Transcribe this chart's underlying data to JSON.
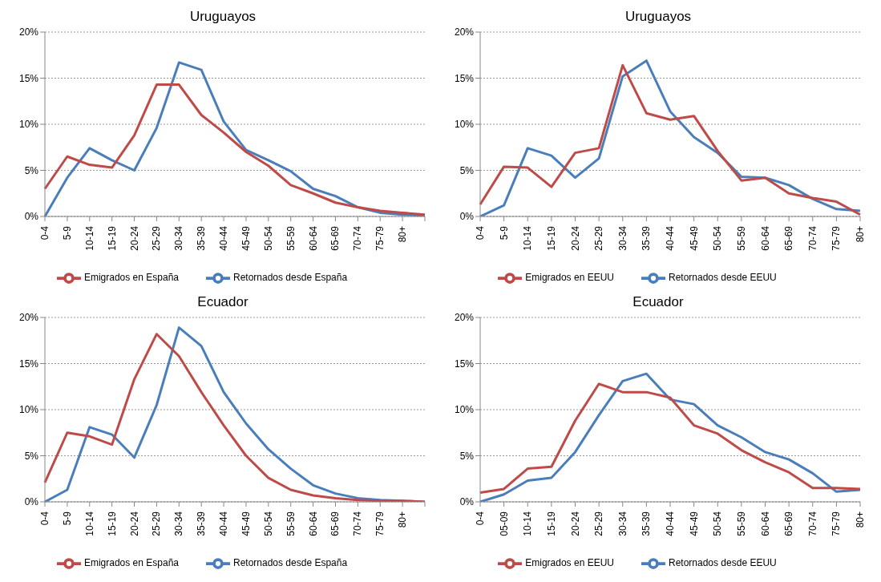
{
  "chart_data": [
    {
      "type": "line",
      "title": "Uruguayos",
      "categories": [
        "0-4",
        "5-9",
        "10-14",
        "15-19",
        "20-24",
        "25-29",
        "30-34",
        "35-39",
        "40-44",
        "45-49",
        "50-54",
        "55-59",
        "60-64",
        "65-69",
        "70-74",
        "75-79",
        "80+",
        null
      ],
      "series": [
        {
          "name": "Retornados desde España",
          "color": "#4a7ebb",
          "values": [
            0,
            4.2,
            7.4,
            6.1,
            5.0,
            9.6,
            16.7,
            15.9,
            10.3,
            7.2,
            6.1,
            4.9,
            3.0,
            2.2,
            1.0,
            0.4,
            0.2,
            0.1
          ]
        },
        {
          "name": "Emigrados en España",
          "color": "#be4b48",
          "values": [
            3.0,
            6.5,
            5.6,
            5.3,
            8.8,
            14.3,
            14.3,
            11.0,
            9.1,
            7.0,
            5.5,
            3.4,
            2.5,
            1.5,
            1.0,
            0.6,
            0.4,
            0.2
          ]
        }
      ],
      "ylim": [
        0,
        20
      ],
      "yticks": [
        {
          "value": 0,
          "label": "0%"
        },
        {
          "value": 5,
          "label": "5%"
        },
        {
          "value": 10,
          "label": "10%"
        },
        {
          "value": 15,
          "label": "15%"
        },
        {
          "value": 20,
          "label": "20%"
        }
      ],
      "grid": "y",
      "legend": "bottom"
    },
    {
      "type": "line",
      "title": "Uruguayos",
      "categories": [
        "0-4",
        "5-9",
        "10-14",
        "15-19",
        "20-24",
        "25-29",
        "30-34",
        "35-39",
        "40-44",
        "45-49",
        "50-54",
        "55-59",
        "60-64",
        "65-69",
        "70-74",
        "75-79",
        "80+"
      ],
      "series": [
        {
          "name": "Retornados desde EEUU",
          "color": "#4a7ebb",
          "values": [
            0,
            1.2,
            7.4,
            6.6,
            4.2,
            6.3,
            15.2,
            16.9,
            11.4,
            8.6,
            6.9,
            4.3,
            4.2,
            3.4,
            1.9,
            0.8,
            0.6
          ]
        },
        {
          "name": "Emigrados en EEUU",
          "color": "#be4b48",
          "values": [
            1.3,
            5.4,
            5.3,
            3.2,
            6.9,
            7.4,
            16.4,
            11.2,
            10.5,
            10.9,
            7.1,
            3.9,
            4.2,
            2.5,
            2.0,
            1.6,
            0.2
          ]
        }
      ],
      "ylim": [
        0,
        20
      ],
      "yticks": [
        {
          "value": 0,
          "label": "0%"
        },
        {
          "value": 5,
          "label": "5%"
        },
        {
          "value": 10,
          "label": "10%"
        },
        {
          "value": 15,
          "label": "15%"
        },
        {
          "value": 20,
          "label": "20%"
        }
      ],
      "grid": "y",
      "legend": "bottom"
    },
    {
      "type": "line",
      "title": "Ecuador",
      "categories": [
        "0-4",
        "5-9",
        "10-14",
        "15-19",
        "20-24",
        "25-29",
        "30-34",
        "35-39",
        "40-44",
        "45-49",
        "50-54",
        "55-59",
        "60-64",
        "65-69",
        "70-74",
        "75-79",
        "80+",
        null
      ],
      "series": [
        {
          "name": "Retornados desde España",
          "color": "#4a7ebb",
          "values": [
            0,
            1.3,
            8.1,
            7.3,
            4.8,
            10.5,
            18.9,
            16.9,
            11.9,
            8.5,
            5.7,
            3.6,
            1.8,
            0.9,
            0.4,
            0.2,
            0.1,
            0.0
          ]
        },
        {
          "name": "Emigrados en España",
          "color": "#be4b48",
          "values": [
            2.1,
            7.5,
            7.1,
            6.2,
            13.3,
            18.2,
            15.8,
            11.9,
            8.3,
            5.0,
            2.6,
            1.3,
            0.7,
            0.4,
            0.2,
            0.1,
            0.1,
            0.0
          ]
        }
      ],
      "ylim": [
        0,
        20
      ],
      "yticks": [
        {
          "value": 0,
          "label": "0%"
        },
        {
          "value": 5,
          "label": "5%"
        },
        {
          "value": 10,
          "label": "10%"
        },
        {
          "value": 15,
          "label": "15%"
        },
        {
          "value": 20,
          "label": "20%"
        }
      ],
      "grid": "y",
      "legend": "bottom"
    },
    {
      "type": "line",
      "title": "Ecuador",
      "categories": [
        "0-4",
        "05-09",
        "10-14",
        "15-19",
        "20-24",
        "25-29",
        "30-34",
        "35-39",
        "40-44",
        "45-49",
        "50-54",
        "55-59",
        "60-64",
        "65-69",
        "70-74",
        "75-79",
        "80+"
      ],
      "series": [
        {
          "name": "Retornados desde EEUU",
          "color": "#4a7ebb",
          "values": [
            0,
            0.8,
            2.3,
            2.6,
            5.4,
            9.4,
            13.1,
            13.9,
            11.1,
            10.6,
            8.3,
            7.0,
            5.4,
            4.6,
            3.1,
            1.1,
            1.3
          ]
        },
        {
          "name": "Emigrados en EEUU",
          "color": "#be4b48",
          "values": [
            1.0,
            1.4,
            3.6,
            3.8,
            8.8,
            12.8,
            11.9,
            11.9,
            11.3,
            8.3,
            7.4,
            5.6,
            4.3,
            3.2,
            1.5,
            1.5,
            1.4
          ]
        }
      ],
      "ylim": [
        0,
        20
      ],
      "yticks": [
        {
          "value": 0,
          "label": "0%"
        },
        {
          "value": 5,
          "label": "5%"
        },
        {
          "value": 10,
          "label": "10%"
        },
        {
          "value": 15,
          "label": "15%"
        },
        {
          "value": 20,
          "label": "20%"
        }
      ],
      "grid": "y",
      "legend": "bottom"
    }
  ]
}
